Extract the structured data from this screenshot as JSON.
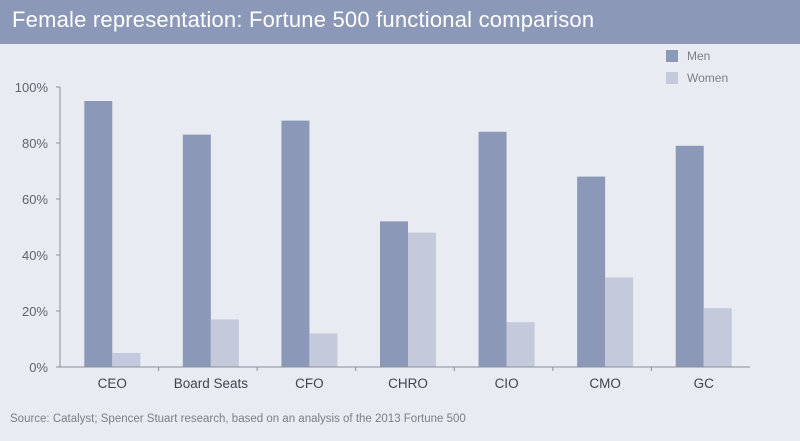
{
  "header": {
    "title": "Female representation: Fortune 500 functional comparison"
  },
  "footer": {
    "source": "Source: Catalyst; Spencer Stuart research, based on an analysis of the 2013 Fortune 500"
  },
  "colors": {
    "men": "#8c98b7",
    "women": "#c4cadc",
    "header_bg": "#8c98b7",
    "background": "#e8ebf1"
  },
  "chart_data": {
    "type": "bar",
    "title": "Female representation: Fortune 500 functional comparison",
    "xlabel": "",
    "ylabel": "",
    "categories": [
      "CEO",
      "Board Seats",
      "CFO",
      "CHRO",
      "CIO",
      "CMO",
      "GC"
    ],
    "series": [
      {
        "name": "Men",
        "values": [
          95,
          83,
          88,
          52,
          84,
          68,
          79
        ]
      },
      {
        "name": "Women",
        "values": [
          5,
          17,
          12,
          48,
          16,
          32,
          21
        ]
      }
    ],
    "ylim": [
      0,
      100
    ],
    "yticks": [
      0,
      20,
      40,
      60,
      80,
      100
    ],
    "ytick_labels": [
      "0%",
      "20%",
      "40%",
      "60%",
      "80%",
      "100%"
    ],
    "grid": false,
    "legend_position": "top-right"
  }
}
